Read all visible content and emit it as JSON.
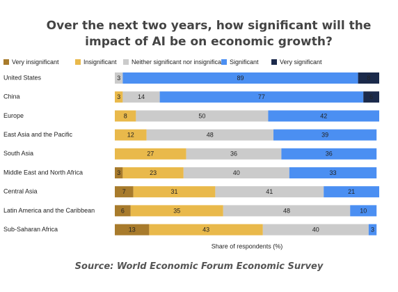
{
  "chart_data": {
    "type": "stacked-bar",
    "title": "Over the next two years, how significant will the impact of AI be on economic growth?",
    "x_label": "Share of respondents (%)",
    "source": "Source: World Economic Forum Economic Survey",
    "categories": [
      "United States",
      "China",
      "Europe",
      "East Asia and the Pacific",
      "South Asia",
      "Middle East and North Africa",
      "Central Asia",
      "Latin America and the Caribbean",
      "Sub-Saharan Africa"
    ],
    "xlim": [
      0,
      100
    ],
    "series": [
      {
        "name": "Very insignificant",
        "color": "#a87b2c",
        "values": [
          null,
          null,
          null,
          null,
          null,
          3,
          7,
          6,
          13
        ]
      },
      {
        "name": "Insignificant",
        "color": "#e9b94b",
        "values": [
          null,
          3,
          8,
          12,
          27,
          23,
          31,
          35,
          43
        ]
      },
      {
        "name": "Neither significant nor insignificant",
        "color": "#cbcbcb",
        "values": [
          3,
          14,
          50,
          48,
          36,
          40,
          41,
          48,
          40
        ]
      },
      {
        "name": "Significant",
        "color": "#4b8ff2",
        "values": [
          89,
          77,
          42,
          39,
          36,
          33,
          21,
          10,
          3
        ]
      },
      {
        "name": "Very significant",
        "color": "#1b2a4b",
        "values": [
          8,
          6,
          null,
          null,
          null,
          null,
          null,
          null,
          null
        ]
      }
    ]
  }
}
